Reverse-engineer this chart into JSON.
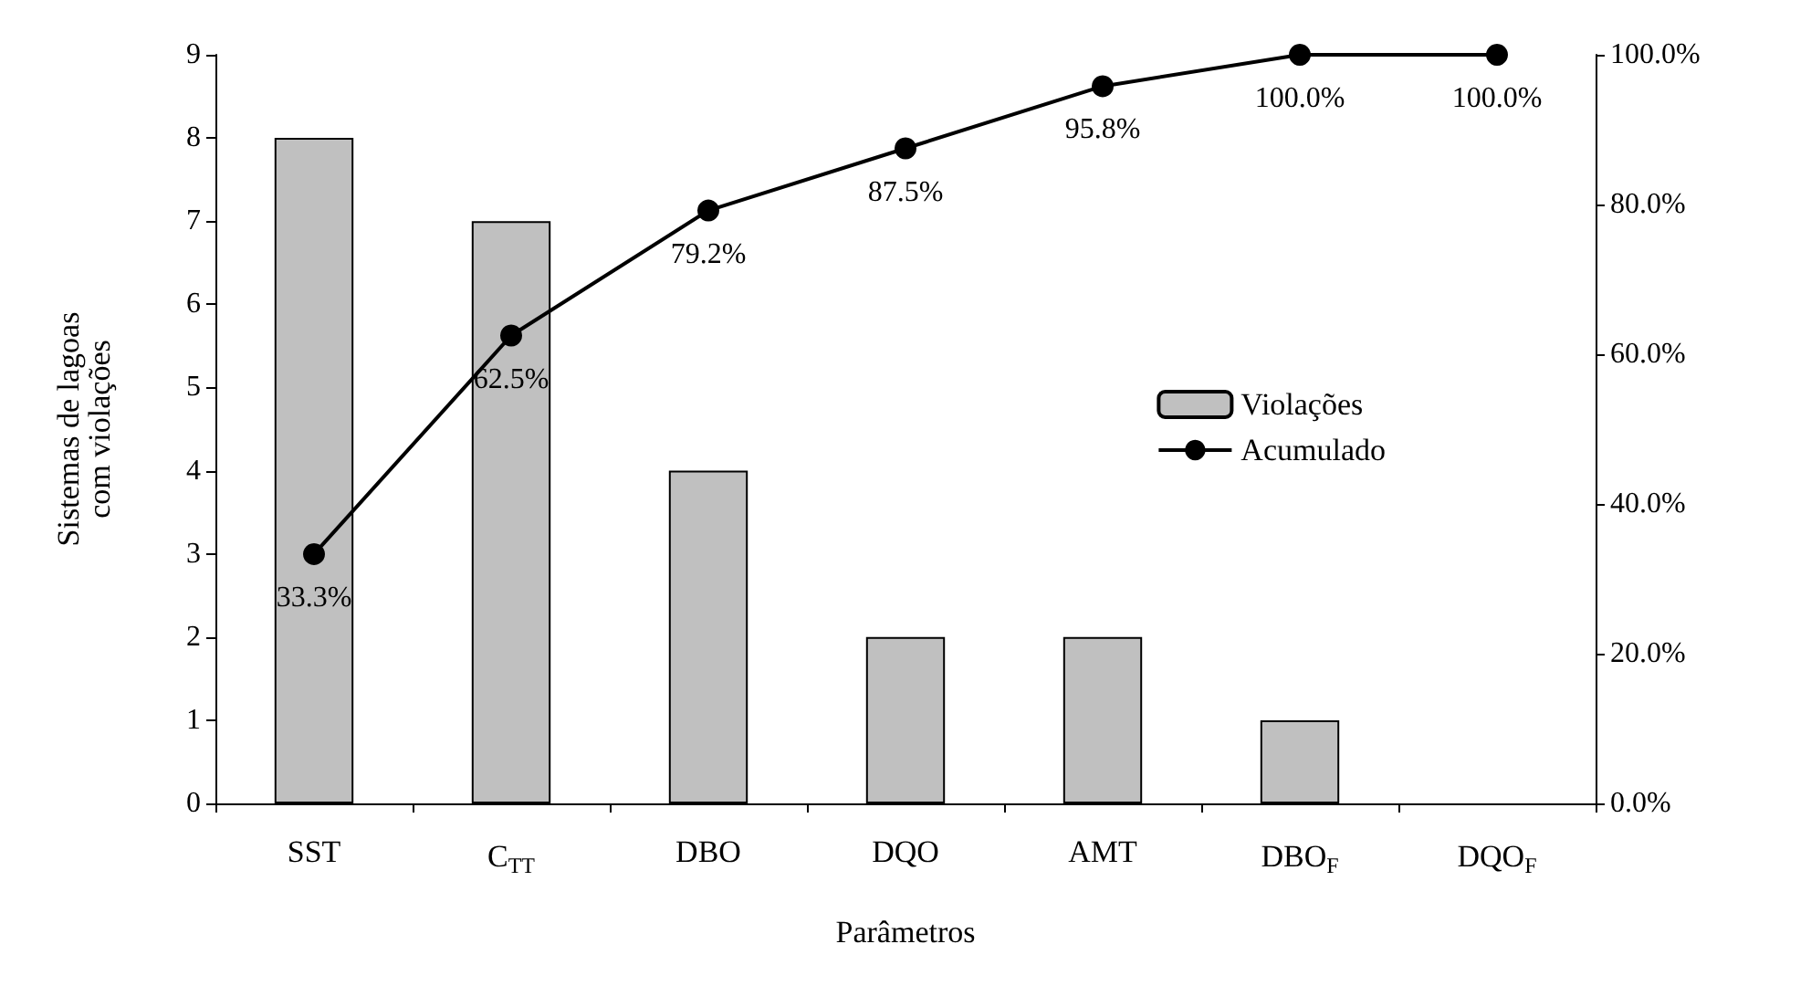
{
  "chart_data": {
    "type": "bar",
    "xlabel": "Parâmetros",
    "ylabel": "Sistemas de lagoas\ncom violações",
    "categories": [
      "SST",
      "C$_{TT}$",
      "DBO",
      "DQO",
      "AMT",
      "DBO$_{F}$",
      "DQO$_{F}$"
    ],
    "series": [
      {
        "name": "Violações",
        "color": "#c0c0c0",
        "values": [
          8,
          7,
          4,
          2,
          2,
          1,
          0
        ]
      },
      {
        "name": "Acumulado",
        "type": "line",
        "axis": "y2",
        "color": "#000000",
        "marker": "circle",
        "line_style": "solid",
        "values": [
          33.3,
          62.5,
          79.2,
          87.5,
          95.8,
          100,
          100
        ],
        "value_labels": [
          "33.3%",
          "62.5%",
          "79.2%",
          "87.5%",
          "95.8%",
          "100.0%",
          "100.0%"
        ]
      }
    ],
    "ylim": [
      0,
      9
    ],
    "yticks": [
      0,
      1,
      2,
      3,
      4,
      5,
      6,
      7,
      8,
      9
    ],
    "y2lim": [
      0,
      100
    ],
    "y2ticks": [
      {
        "value": 0,
        "label": "0.0%"
      },
      {
        "value": 20,
        "label": "20.0%"
      },
      {
        "value": 40,
        "label": "40.0%"
      },
      {
        "value": 60,
        "label": "60.0%"
      },
      {
        "value": 80,
        "label": "80.0%"
      },
      {
        "value": 100,
        "label": "100.0%"
      }
    ],
    "grid": false,
    "legend": "right"
  }
}
